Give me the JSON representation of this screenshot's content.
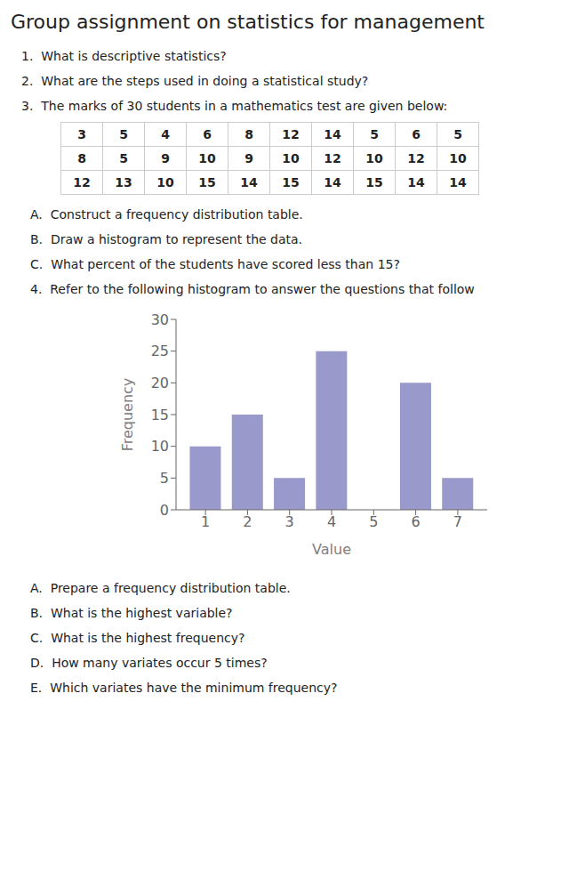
{
  "chart_data": {
    "type": "bar",
    "title": "Group assignment on statistics for management",
    "notes_top": [
      "1.  What is descriptive statistics?",
      "2.  What are the steps used in doing a statistical study?",
      "3.  The marks of 30 students in a mathematics test are given below:"
    ],
    "table": [
      [
        3,
        5,
        4,
        6,
        8,
        12,
        14,
        5,
        6,
        5
      ],
      [
        8,
        5,
        9,
        10,
        9,
        10,
        12,
        10,
        12,
        10
      ],
      [
        12,
        13,
        10,
        15,
        14,
        15,
        14,
        15,
        14,
        14
      ]
    ],
    "notes_middle": [
      "A.  Construct a frequency distribution table.",
      "B.  Draw a histogram to represent the data.",
      "C.  What percent of the students have scored less than 15?",
      "4.  Refer to the following histogram to answer the questions that follow"
    ],
    "notes_bottom": [
      "A.  Prepare a frequency distribution table.",
      "B.  What is the highest variable?",
      "C.  What is the highest frequency?",
      "D.  How many variates occur 5 times?",
      "E.  Which variates have the minimum frequency?"
    ],
    "x": [
      1,
      2,
      3,
      4,
      5,
      6,
      7
    ],
    "values": [
      10,
      15,
      5,
      25,
      0,
      20,
      5
    ],
    "color": "#9999cc",
    "x_label": "Value",
    "y_label": "Frequency",
    "xlim": [
      0.3,
      7.7
    ],
    "xticks": [
      1,
      2,
      3,
      4,
      5,
      6,
      7
    ],
    "ylim": [
      0,
      30
    ],
    "yticks": [
      0,
      5,
      10,
      15,
      20,
      25,
      30
    ],
    "grid": false
  }
}
